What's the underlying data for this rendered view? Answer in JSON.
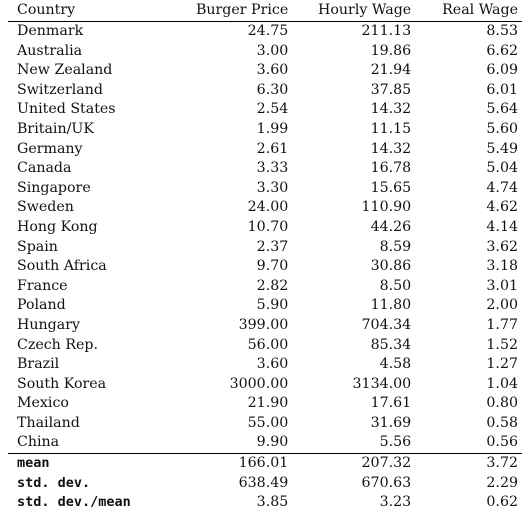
{
  "table": {
    "headers": [
      "Country",
      "Burger Price",
      "Hourly Wage",
      "Real Wage"
    ],
    "rows": [
      [
        "Denmark",
        "24.75",
        "211.13",
        "8.53"
      ],
      [
        "Australia",
        "3.00",
        "19.86",
        "6.62"
      ],
      [
        "New Zealand",
        "3.60",
        "21.94",
        "6.09"
      ],
      [
        "Switzerland",
        "6.30",
        "37.85",
        "6.01"
      ],
      [
        "United States",
        "2.54",
        "14.32",
        "5.64"
      ],
      [
        "Britain/UK",
        "1.99",
        "11.15",
        "5.60"
      ],
      [
        "Germany",
        "2.61",
        "14.32",
        "5.49"
      ],
      [
        "Canada",
        "3.33",
        "16.78",
        "5.04"
      ],
      [
        "Singapore",
        "3.30",
        "15.65",
        "4.74"
      ],
      [
        "Sweden",
        "24.00",
        "110.90",
        "4.62"
      ],
      [
        "Hong Kong",
        "10.70",
        "44.26",
        "4.14"
      ],
      [
        "Spain",
        "2.37",
        "8.59",
        "3.62"
      ],
      [
        "South Africa",
        "9.70",
        "30.86",
        "3.18"
      ],
      [
        "France",
        "2.82",
        "8.50",
        "3.01"
      ],
      [
        "Poland",
        "5.90",
        "11.80",
        "2.00"
      ],
      [
        "Hungary",
        "399.00",
        "704.34",
        "1.77"
      ],
      [
        "Czech Rep.",
        "56.00",
        "85.34",
        "1.52"
      ],
      [
        "Brazil",
        "3.60",
        "4.58",
        "1.27"
      ],
      [
        "South Korea",
        "3000.00",
        "3134.00",
        "1.04"
      ],
      [
        "Mexico",
        "21.90",
        "17.61",
        "0.80"
      ],
      [
        "Thailand",
        "55.00",
        "31.69",
        "0.58"
      ],
      [
        "China",
        "9.90",
        "5.56",
        "0.56"
      ]
    ],
    "summary": [
      [
        "mean",
        "166.01",
        "207.32",
        "3.72"
      ],
      [
        "std. dev.",
        "638.49",
        "670.63",
        "2.29"
      ],
      [
        "std. dev./mean",
        "3.85",
        "3.23",
        "0.62"
      ]
    ]
  }
}
